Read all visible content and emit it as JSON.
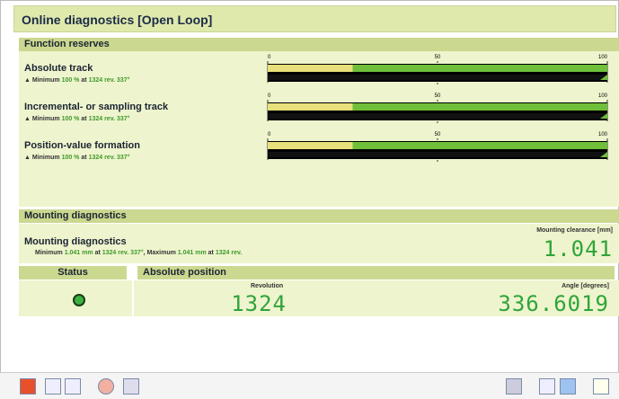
{
  "header": {
    "title": "Online diagnostics [Open Loop]"
  },
  "function_reserves": {
    "title": "Function reserves",
    "scale": {
      "xlim": [
        0,
        100
      ],
      "xticks": [
        0,
        50,
        100
      ]
    },
    "rows": [
      {
        "label": "Absolute track",
        "min_label": "Minimum",
        "value": 100,
        "value_label": "100 %",
        "at": "at",
        "position": "1324 rev. 337°"
      },
      {
        "label": "Incremental- or sampling track",
        "min_label": "Minimum",
        "value": 100,
        "value_label": "100 %",
        "at": "at",
        "position": "1324 rev. 337°"
      },
      {
        "label": "Position-value formation",
        "min_label": "Minimum",
        "value": 100,
        "value_label": "100 %",
        "at": "at",
        "position": "1324 rev. 337°"
      }
    ]
  },
  "mounting": {
    "title": "Mounting diagnostics",
    "label": "Mounting diagnostics",
    "detail": [
      "Minimum",
      "1.041 mm",
      "at",
      "1324 rev. 337°",
      ", Maximum",
      "1.041 mm",
      "at",
      "1324 rev."
    ],
    "clearance_label": "Mounting clearance [mm]",
    "clearance": "1.041"
  },
  "position": {
    "status_header": "Status",
    "position_header": "Absolute position",
    "revolution_label": "Revolution",
    "revolution": "1324",
    "angle_label": "Angle [degrees]",
    "angle": "336.6019"
  }
}
